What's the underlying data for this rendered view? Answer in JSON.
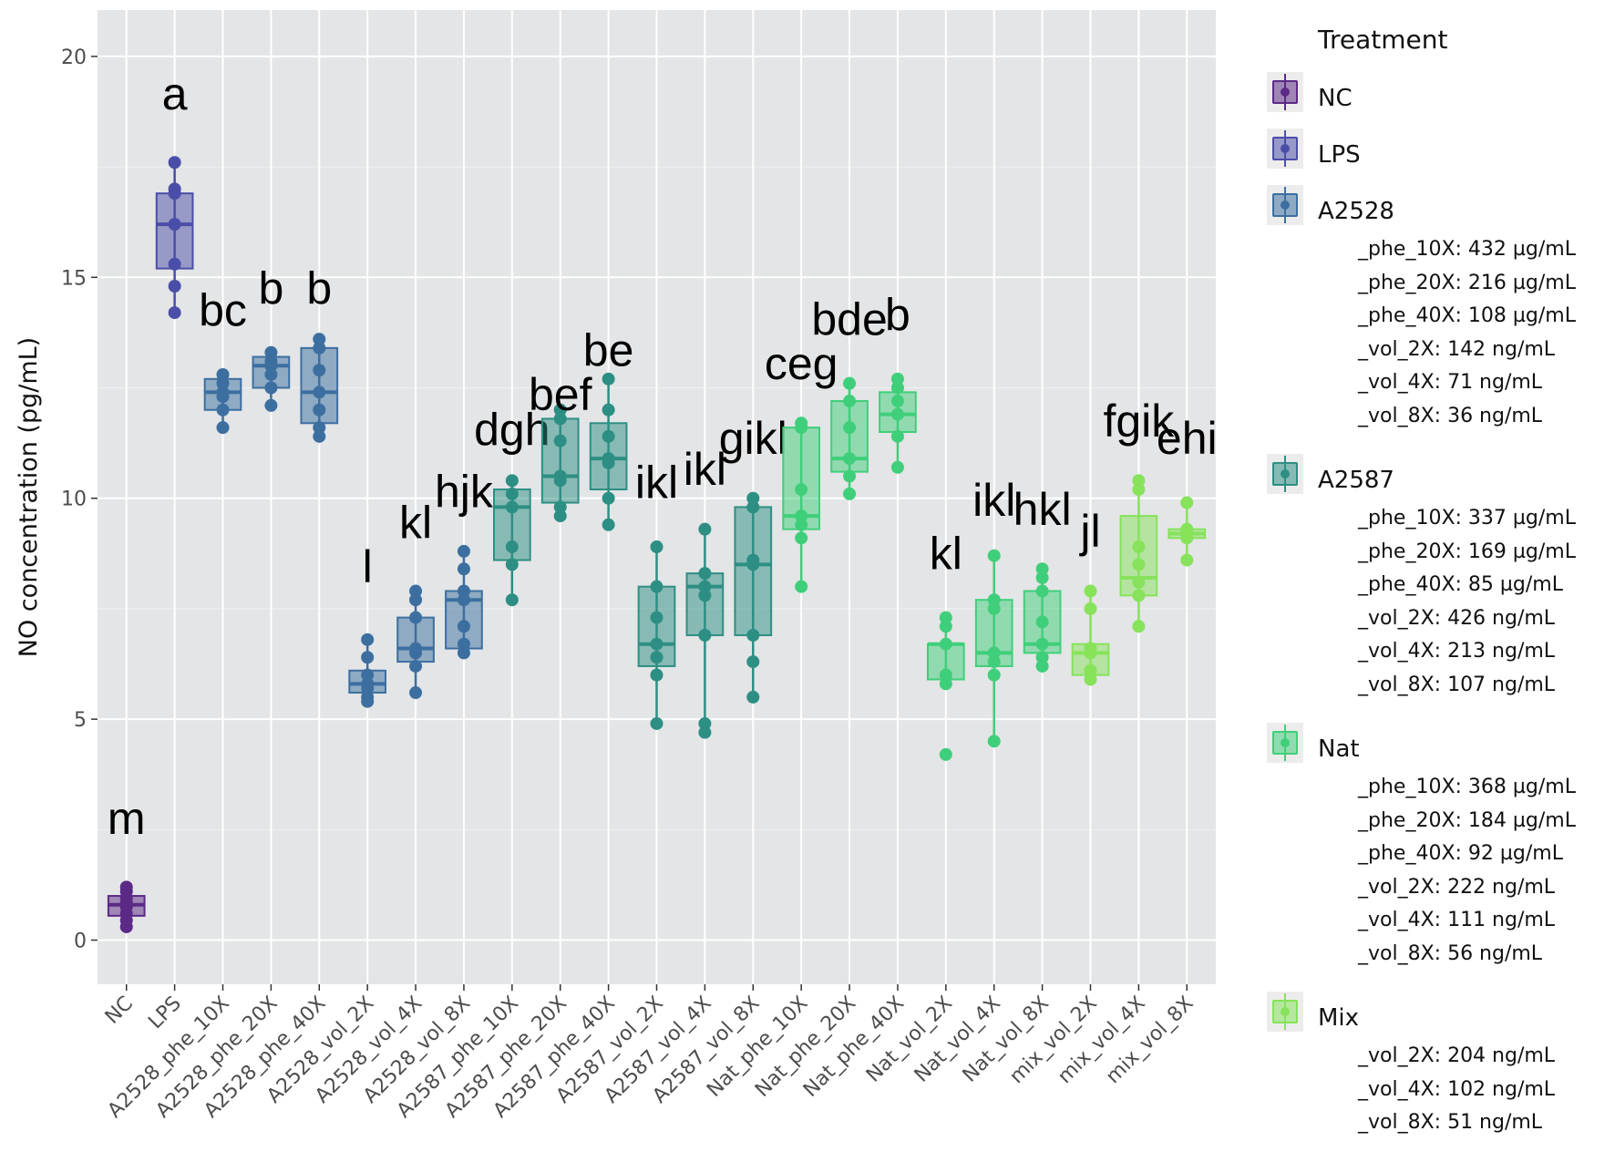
{
  "chart_data": {
    "type": "boxplot",
    "title": "",
    "xlabel": "",
    "ylabel": "NO concentration (pg/mL)",
    "ylim": [
      -1,
      21.05
    ],
    "yticks": [
      0,
      5,
      10,
      15,
      20
    ],
    "grid": true,
    "legend_position": "right",
    "legend_title": "Treatment",
    "groups": [
      {
        "name": "NC",
        "treatment": "NC",
        "letter": "m",
        "letter_y": 2.4,
        "min": 0.3,
        "q1": 0.55,
        "median": 0.8,
        "q3": 1.0,
        "max": 1.2,
        "points": [
          0.3,
          0.45,
          0.6,
          0.75,
          0.85,
          0.95,
          1.1,
          1.2
        ]
      },
      {
        "name": "LPS",
        "treatment": "LPS",
        "letter": "a",
        "letter_y": 18.8,
        "min": 14.2,
        "q1": 15.2,
        "median": 16.2,
        "q3": 16.9,
        "max": 17.6,
        "points": [
          14.2,
          14.8,
          15.3,
          16.2,
          16.9,
          17.0,
          17.6
        ]
      },
      {
        "name": "A2528_phe_10X",
        "treatment": "A2528",
        "letter": "bc",
        "letter_y": 13.9,
        "min": 11.6,
        "q1": 12.0,
        "median": 12.4,
        "q3": 12.7,
        "max": 12.8,
        "points": [
          11.6,
          12.0,
          12.3,
          12.4,
          12.6,
          12.8
        ]
      },
      {
        "name": "A2528_phe_20X",
        "treatment": "A2528",
        "letter": "b",
        "letter_y": 14.4,
        "min": 12.1,
        "q1": 12.5,
        "median": 13.0,
        "q3": 13.2,
        "max": 13.3,
        "points": [
          12.1,
          12.5,
          12.8,
          13.0,
          13.1,
          13.3
        ]
      },
      {
        "name": "A2528_phe_40X",
        "treatment": "A2528",
        "letter": "b",
        "letter_y": 14.4,
        "min": 11.4,
        "q1": 11.7,
        "median": 12.4,
        "q3": 13.4,
        "max": 13.6,
        "points": [
          11.4,
          11.6,
          12.0,
          12.4,
          12.9,
          13.4,
          13.6
        ]
      },
      {
        "name": "A2528_vol_2X",
        "treatment": "A2528",
        "letter": "l",
        "letter_y": 8.1,
        "min": 5.4,
        "q1": 5.6,
        "median": 5.8,
        "q3": 6.1,
        "max": 6.8,
        "points": [
          5.4,
          5.5,
          5.7,
          5.8,
          6.0,
          6.4,
          6.8
        ]
      },
      {
        "name": "A2528_vol_4X",
        "treatment": "A2528",
        "letter": "kl",
        "letter_y": 9.1,
        "min": 5.6,
        "q1": 6.3,
        "median": 6.6,
        "q3": 7.3,
        "max": 7.9,
        "points": [
          5.6,
          6.2,
          6.5,
          6.6,
          7.3,
          7.7,
          7.9
        ]
      },
      {
        "name": "A2528_vol_8X",
        "treatment": "A2528",
        "letter": "hjk",
        "letter_y": 9.8,
        "min": 6.5,
        "q1": 6.6,
        "median": 7.7,
        "q3": 7.9,
        "max": 8.8,
        "points": [
          6.5,
          6.7,
          7.1,
          7.7,
          7.9,
          8.4,
          8.8
        ]
      },
      {
        "name": "A2587_phe_10X",
        "treatment": "A2587",
        "letter": "dgh",
        "letter_y": 11.2,
        "min": 7.7,
        "q1": 8.6,
        "median": 9.8,
        "q3": 10.2,
        "max": 10.4,
        "points": [
          7.7,
          8.5,
          8.9,
          9.8,
          10.1,
          10.4
        ]
      },
      {
        "name": "A2587_phe_20X",
        "treatment": "A2587",
        "letter": "bef",
        "letter_y": 12.0,
        "min": 9.6,
        "q1": 9.9,
        "median": 10.5,
        "q3": 11.8,
        "max": 12.0,
        "points": [
          9.6,
          9.8,
          10.4,
          10.5,
          11.3,
          11.8,
          12.0
        ]
      },
      {
        "name": "A2587_phe_40X",
        "treatment": "A2587",
        "letter": "be",
        "letter_y": 13.0,
        "min": 9.4,
        "q1": 10.2,
        "median": 10.9,
        "q3": 11.7,
        "max": 12.7,
        "points": [
          9.4,
          10.0,
          10.8,
          10.9,
          11.4,
          12.0,
          12.7
        ]
      },
      {
        "name": "A2587_vol_2X",
        "treatment": "A2587",
        "letter": "ikl",
        "letter_y": 10.0,
        "min": 4.9,
        "q1": 6.2,
        "median": 6.7,
        "q3": 8.0,
        "max": 8.9,
        "points": [
          4.9,
          6.0,
          6.4,
          6.7,
          7.3,
          8.0,
          8.9
        ]
      },
      {
        "name": "A2587_vol_4X",
        "treatment": "A2587",
        "letter": "ikl",
        "letter_y": 10.3,
        "min": 4.7,
        "q1": 6.9,
        "median": 8.0,
        "q3": 8.3,
        "max": 9.3,
        "points": [
          4.7,
          4.9,
          6.9,
          7.8,
          8.0,
          8.3,
          9.3
        ]
      },
      {
        "name": "A2587_vol_8X",
        "treatment": "A2587",
        "letter": "gikl",
        "letter_y": 11.0,
        "min": 5.5,
        "q1": 6.9,
        "median": 8.5,
        "q3": 9.8,
        "max": 10.0,
        "points": [
          5.5,
          6.3,
          6.9,
          8.5,
          8.6,
          9.8,
          10.0
        ]
      },
      {
        "name": "Nat_phe_10X",
        "treatment": "Nat",
        "letter": "ceg",
        "letter_y": 12.7,
        "min": 8.0,
        "q1": 9.3,
        "median": 9.6,
        "q3": 11.6,
        "max": 11.7,
        "points": [
          8.0,
          9.1,
          9.4,
          9.6,
          10.2,
          11.6,
          11.7
        ]
      },
      {
        "name": "Nat_phe_20X",
        "treatment": "Nat",
        "letter": "bde",
        "letter_y": 13.7,
        "min": 10.1,
        "q1": 10.6,
        "median": 10.9,
        "q3": 12.2,
        "max": 12.6,
        "points": [
          10.1,
          10.5,
          10.9,
          11.6,
          12.2,
          12.6
        ]
      },
      {
        "name": "Nat_phe_40X",
        "treatment": "Nat",
        "letter": "b",
        "letter_y": 13.8,
        "min": 10.7,
        "q1": 11.5,
        "median": 11.9,
        "q3": 12.4,
        "max": 12.7,
        "points": [
          10.7,
          11.4,
          11.9,
          12.2,
          12.5,
          12.7
        ]
      },
      {
        "name": "Nat_vol_2X",
        "treatment": "Nat",
        "letter": "kl",
        "letter_y": 8.4,
        "min": 5.8,
        "q1": 5.9,
        "median": 6.7,
        "q3": 6.7,
        "max": 7.3,
        "points": [
          4.2,
          5.8,
          6.0,
          6.7,
          7.1,
          7.3
        ]
      },
      {
        "name": "Nat_vol_4X",
        "treatment": "Nat",
        "letter": "ikl",
        "letter_y": 9.6,
        "min": 4.5,
        "q1": 6.2,
        "median": 6.5,
        "q3": 7.7,
        "max": 8.7,
        "points": [
          4.5,
          6.0,
          6.3,
          6.5,
          7.5,
          7.7,
          8.7
        ]
      },
      {
        "name": "Nat_vol_8X",
        "treatment": "Nat",
        "letter": "hkl",
        "letter_y": 9.4,
        "min": 6.2,
        "q1": 6.5,
        "median": 6.7,
        "q3": 7.9,
        "max": 8.4,
        "points": [
          6.2,
          6.4,
          6.7,
          7.2,
          7.9,
          8.2,
          8.4
        ]
      },
      {
        "name": "mix_vol_2X",
        "treatment": "Mix",
        "letter": "jl",
        "letter_y": 8.9,
        "min": 5.9,
        "q1": 6.0,
        "median": 6.5,
        "q3": 6.7,
        "max": 7.9,
        "points": [
          5.9,
          6.1,
          6.5,
          6.6,
          7.5,
          7.9
        ]
      },
      {
        "name": "mix_vol_4X",
        "treatment": "Mix",
        "letter": "fgik",
        "letter_y": 11.4,
        "min": 7.1,
        "q1": 7.8,
        "median": 8.2,
        "q3": 9.6,
        "max": 10.4,
        "points": [
          7.1,
          7.8,
          8.1,
          8.5,
          8.9,
          10.2,
          10.4
        ]
      },
      {
        "name": "mix_vol_8X",
        "treatment": "Mix",
        "letter": "ehi",
        "letter_y": 11.0,
        "min": 8.6,
        "q1": 9.1,
        "median": 9.2,
        "q3": 9.3,
        "max": 9.9,
        "points": [
          8.6,
          9.1,
          9.2,
          9.3,
          9.9
        ]
      }
    ],
    "colors": {
      "NC": "#5b2a86",
      "LPS": "#4b4ea8",
      "A2528": "#3c6fa0",
      "A2587": "#2d8f83",
      "Nat": "#3fcf7a",
      "Mix": "#86e35a"
    },
    "legend": [
      {
        "key": "NC",
        "label": "NC",
        "sub": []
      },
      {
        "key": "LPS",
        "label": "LPS",
        "sub": []
      },
      {
        "key": "A2528",
        "label": "A2528",
        "sub": [
          "_phe_10X: 432 µg/mL",
          "_phe_20X: 216 µg/mL",
          "_phe_40X: 108 µg/mL",
          "_vol_2X: 142 ng/mL",
          "_vol_4X: 71 ng/mL",
          "_vol_8X: 36 ng/mL"
        ]
      },
      {
        "key": "A2587",
        "label": "A2587",
        "sub": [
          "_phe_10X: 337 µg/mL",
          "_phe_20X: 169 µg/mL",
          "_phe_40X: 85 µg/mL",
          "_vol_2X: 426 ng/mL",
          "_vol_4X: 213 ng/mL",
          "_vol_8X: 107 ng/mL"
        ]
      },
      {
        "key": "Nat",
        "label": "Nat",
        "sub": [
          "_phe_10X: 368 µg/mL",
          "_phe_20X: 184 µg/mL",
          "_phe_40X: 92 µg/mL",
          "_vol_2X: 222 ng/mL",
          "_vol_4X: 111 ng/mL",
          "_vol_8X: 56 ng/mL"
        ]
      },
      {
        "key": "Mix",
        "label": "Mix",
        "sub": [
          "_vol_2X: 204 ng/mL",
          "_vol_4X: 102 ng/mL",
          "_vol_8X: 51 ng/mL"
        ]
      }
    ]
  }
}
